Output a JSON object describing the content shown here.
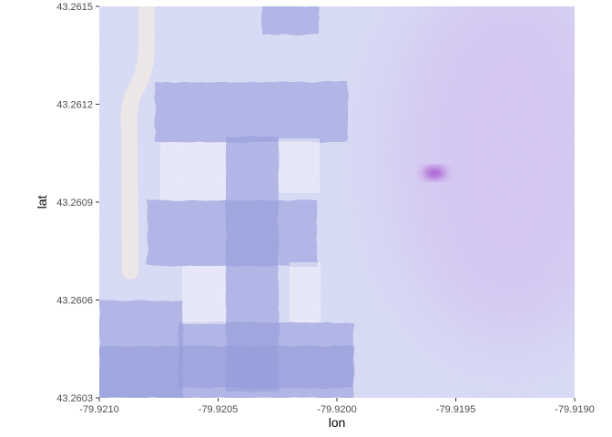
{
  "chart_data": {
    "type": "map-tile",
    "xlabel": "lon",
    "ylabel": "lat",
    "xlim": [
      -79.921,
      -79.919
    ],
    "ylim": [
      43.2603,
      43.2615
    ],
    "x_ticks": [
      {
        "value": -79.921,
        "label": "-79.9210"
      },
      {
        "value": -79.9205,
        "label": "-79.9205"
      },
      {
        "value": -79.92,
        "label": "-79.9200"
      },
      {
        "value": -79.9195,
        "label": "-79.9195"
      },
      {
        "value": -79.919,
        "label": "-79.9190"
      }
    ],
    "y_ticks": [
      {
        "value": 43.2603,
        "label": "43.2603"
      },
      {
        "value": 43.2606,
        "label": "43.2606"
      },
      {
        "value": 43.2609,
        "label": "43.2609"
      },
      {
        "value": 43.2612,
        "label": "43.2612"
      },
      {
        "value": 43.2615,
        "label": "43.2615"
      }
    ],
    "grid": false,
    "basemap_style": "watercolor",
    "colors": {
      "background_wash": "#dcdff5",
      "building_fill": "#8f97d8",
      "road_fill": "#f4ece8",
      "magenta_tint": "#d6b8f0",
      "magenta_spot": "#9a2fc4"
    }
  }
}
